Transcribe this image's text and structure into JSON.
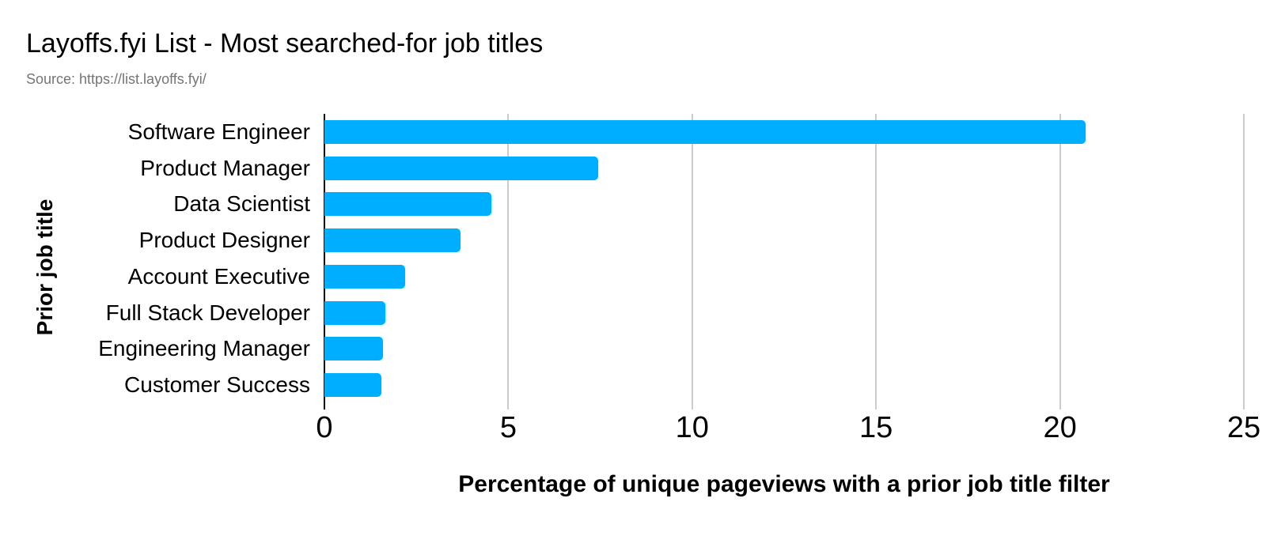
{
  "header": {
    "title": "Layoffs.fyi List - Most searched-for job titles",
    "source_note": "Source: https://list.layoffs.fyi/"
  },
  "chart_data": {
    "type": "bar",
    "orientation": "horizontal",
    "title": "Layoffs.fyi List - Most searched-for job titles",
    "source_note": "Source: https://list.layoffs.fyi/",
    "categories": [
      "Software Engineer",
      "Product Manager",
      "Data Scientist",
      "Product Designer",
      "Account Executive",
      "Full Stack Developer",
      "Engineering Manager",
      "Customer Success"
    ],
    "values": [
      20.7,
      7.45,
      4.55,
      3.7,
      2.2,
      1.65,
      1.6,
      1.55
    ],
    "xlabel": "Percentage of unique pageviews with a prior job title filter",
    "ylabel": "Prior job title",
    "xlim": [
      0,
      25
    ],
    "xticks": [
      0,
      5,
      10,
      15,
      20,
      25
    ],
    "grid": "vertical",
    "legend": "none",
    "colors": {
      "bar": "#00aeff",
      "gridline": "#cccccc",
      "axis": "#000000",
      "title_text": "#000000",
      "source_text": "#757575",
      "background": "#ffffff"
    }
  }
}
